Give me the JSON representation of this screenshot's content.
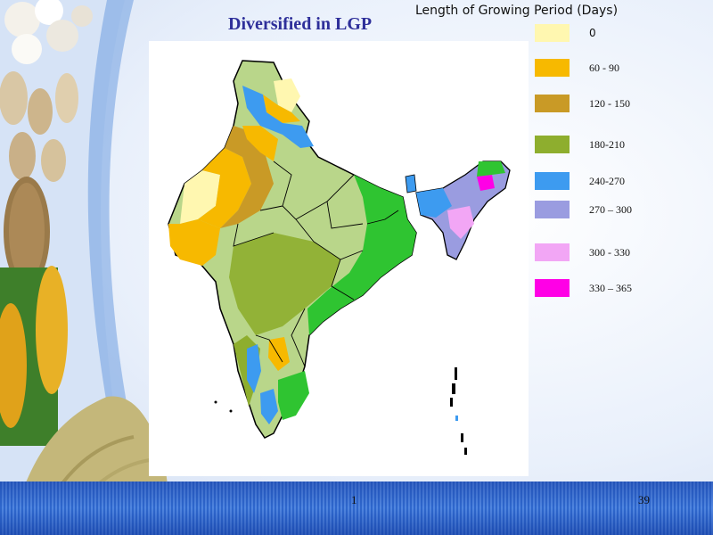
{
  "slide": {
    "title": "Diversified in LGP",
    "page_left": "1",
    "page_right": "39"
  },
  "legend": {
    "title": "Length of Growing Period (Days)",
    "items": [
      {
        "label": "0",
        "color": "#fff7b0"
      },
      {
        "label": "60 - 90",
        "color": "#f7b900"
      },
      {
        "label": "120 - 150",
        "color": "#c99a26"
      },
      {
        "label": "180-210",
        "color": "#8eae2e"
      },
      {
        "label": "240-270",
        "color": "#3d9bf0"
      },
      {
        "label": "270 – 300",
        "color": "#9a9ce0"
      },
      {
        "label": "300 - 330",
        "color": "#f2a6f5"
      },
      {
        "label": "330 – 365",
        "color": "#ff00e6"
      }
    ]
  },
  "map": {
    "region_colors": {
      "light_green": "#b9d68a",
      "bright_green": "#2fc431",
      "border": "#000000"
    }
  }
}
